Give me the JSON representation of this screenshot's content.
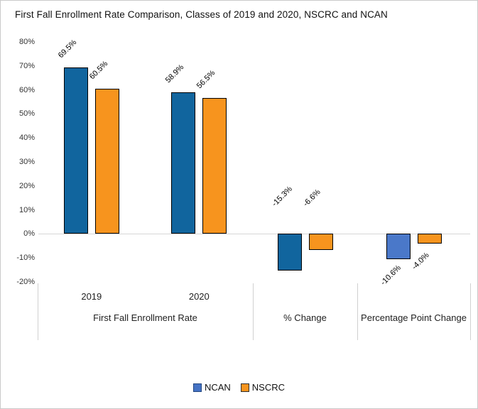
{
  "frame": {
    "background": "#FFFFFF",
    "border_color": "#C9C9C9"
  },
  "chart_data": {
    "type": "bar",
    "title": "First Fall Enrollment Rate Comparison, Classes of 2019 and 2020, NSCRC and NCAN",
    "xlabel": "",
    "ylabel": "",
    "ylim": [
      -20,
      80
    ],
    "ytick_values": [
      80,
      70,
      60,
      50,
      40,
      30,
      20,
      10,
      0,
      -10,
      -20
    ],
    "ytick_labels": [
      "80%",
      "70%",
      "60%",
      "50%",
      "40%",
      "30%",
      "20%",
      "10%",
      "0%",
      "-10%",
      "-20%"
    ],
    "grid": "zero-line-only",
    "zero_line_color": "#D6D6D6",
    "bar_border_color": "#000000",
    "legend_position": "bottom-center",
    "series": [
      {
        "name": "NCAN",
        "color": "#11659E",
        "legend_fill": "#4472C4",
        "legend_border": "#24477F"
      },
      {
        "name": "NSCRC",
        "color": "#F7941E",
        "legend_fill": "#F7941E",
        "legend_border": "#303030"
      }
    ],
    "groups": [
      {
        "category": "First Fall Enrollment Rate",
        "subgroups": [
          {
            "label": "2019",
            "bars": [
              {
                "series": "NCAN",
                "value": 69.5,
                "label": "69.5%",
                "color": "#11659E",
                "label_placement": "above"
              },
              {
                "series": "NSCRC",
                "value": 60.5,
                "label": "60.5%",
                "color": "#F7941E",
                "label_placement": "above"
              }
            ]
          },
          {
            "label": "2020",
            "bars": [
              {
                "series": "NCAN",
                "value": 58.9,
                "label": "58.9%",
                "color": "#11659E",
                "label_placement": "above"
              },
              {
                "series": "NSCRC",
                "value": 56.5,
                "label": "56.5%",
                "color": "#F7941E",
                "label_placement": "above"
              }
            ]
          }
        ]
      },
      {
        "category": "% Change",
        "subgroups": [
          {
            "label": "",
            "bars": [
              {
                "series": "NCAN",
                "value": -15.3,
                "label": "-15.3%",
                "color": "#11659E",
                "label_placement": "above_axis"
              },
              {
                "series": "NSCRC",
                "value": -6.6,
                "label": "-6.6%",
                "color": "#F7941E",
                "label_placement": "above_axis"
              }
            ]
          }
        ]
      },
      {
        "category": "Percentage Point Change",
        "subgroups": [
          {
            "label": "",
            "bars": [
              {
                "series": "NCAN",
                "value": -10.6,
                "label": "-10.6%",
                "color": "#4A78C9",
                "label_placement": "below"
              },
              {
                "series": "NSCRC",
                "value": -4.0,
                "label": "-4.0%",
                "color": "#F7941E",
                "label_placement": "below"
              }
            ]
          }
        ]
      }
    ]
  },
  "legend": {
    "items": [
      {
        "label": "NCAN"
      },
      {
        "label": "NSCRC"
      }
    ]
  }
}
